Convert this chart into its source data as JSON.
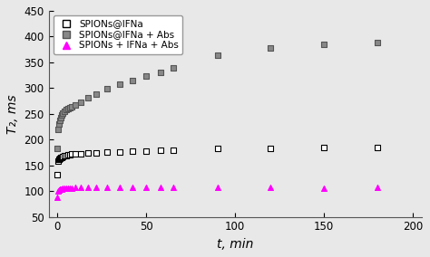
{
  "title": "",
  "xlabel": "t, min",
  "ylabel": "T₂, ms",
  "ylim": [
    50,
    450
  ],
  "xlim": [
    -5,
    205
  ],
  "yticks": [
    50,
    100,
    150,
    200,
    250,
    300,
    350,
    400,
    450
  ],
  "xticks": [
    0,
    50,
    100,
    150,
    200
  ],
  "series1_label": "SPIONs@IFNa",
  "series1_x": [
    0,
    0.5,
    1,
    1.5,
    2,
    2.5,
    3,
    4,
    5,
    6,
    7,
    8,
    10,
    13,
    17,
    22,
    28,
    35,
    42,
    50,
    58,
    65,
    90,
    120,
    150,
    180
  ],
  "series1_y": [
    132,
    158,
    162,
    164,
    165,
    166,
    167,
    168,
    169,
    170,
    171,
    172,
    172,
    173,
    174,
    174,
    175,
    176,
    177,
    178,
    179,
    180,
    182,
    183,
    185,
    185
  ],
  "series1_edgecolor": "#000000",
  "series1_facecolor": "white",
  "series1_marker": "s",
  "series2_label": "SPIONs@IFNa + Abs",
  "series2_x": [
    0,
    0.5,
    1,
    1.5,
    2,
    2.5,
    3,
    4,
    5,
    6,
    7,
    8,
    10,
    13,
    17,
    22,
    28,
    35,
    42,
    50,
    58,
    65,
    90,
    120,
    150,
    180
  ],
  "series2_y": [
    183,
    220,
    230,
    237,
    243,
    248,
    251,
    255,
    258,
    260,
    262,
    264,
    267,
    273,
    281,
    289,
    298,
    307,
    315,
    324,
    331,
    339,
    364,
    378,
    385,
    388
  ],
  "series2_edgecolor": "#555555",
  "series2_facecolor": "#888888",
  "series2_marker": "s",
  "series3_label": "SPIONs + IFNa + Abs",
  "series3_x": [
    0,
    0.5,
    1,
    1.5,
    2,
    2.5,
    3,
    4,
    5,
    6,
    7,
    8,
    10,
    13,
    17,
    22,
    28,
    35,
    42,
    50,
    58,
    65,
    90,
    120,
    150,
    180
  ],
  "series3_y": [
    88,
    100,
    102,
    103,
    104,
    104,
    105,
    105,
    106,
    106,
    106,
    106,
    107,
    107,
    107,
    107,
    107,
    107,
    107,
    107,
    107,
    107,
    107,
    107,
    105,
    107
  ],
  "series3_edgecolor": "#ff00ff",
  "series3_facecolor": "#ff00ff",
  "series3_marker": "^",
  "marker_size": 18,
  "legend_fontsize": 7.5,
  "tick_fontsize": 8.5,
  "axis_label_fontsize": 10,
  "bg_color": "#f0f0f0"
}
